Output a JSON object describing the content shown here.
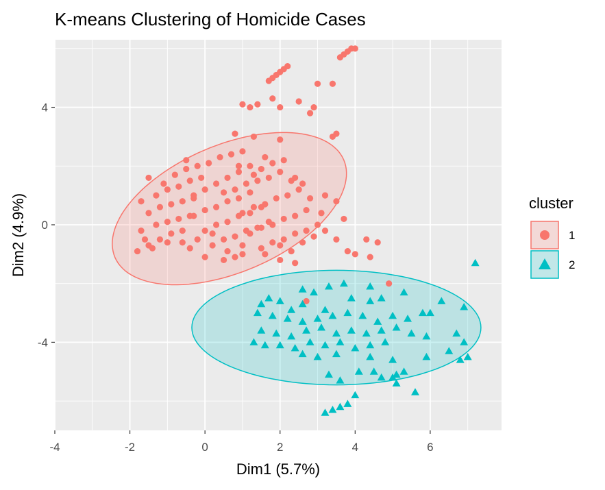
{
  "chart_data": {
    "type": "scatter",
    "title": "K-means Clustering of Homicide Cases",
    "xlabel": "Dim1 (5.7%)",
    "ylabel": "Dim2 (4.9%)",
    "xlim": [
      -4,
      7.9
    ],
    "ylim": [
      -7,
      6.3
    ],
    "x_ticks": [
      -4,
      -2,
      0,
      2,
      4,
      6
    ],
    "y_ticks": [
      -4,
      0,
      4
    ],
    "grid": true,
    "legend": {
      "title": "cluster",
      "position": "right",
      "entries": [
        {
          "label": "1",
          "shape": "circle",
          "color": "#F8766D"
        },
        {
          "label": "2",
          "shape": "triangle",
          "color": "#00BFC4"
        }
      ]
    },
    "colors": {
      "cluster_1": "#F8766D",
      "cluster_2": "#00BFC4",
      "panel": "#EBEBEB",
      "grid": "#FFFFFF"
    },
    "ellipses": [
      {
        "cluster": "1",
        "center": [
          0.65,
          0.55
        ],
        "half_axis_major": 3.5,
        "half_axis_minor": 2.05,
        "angle_deg": 34
      },
      {
        "cluster": "2",
        "center": [
          3.5,
          -3.5
        ],
        "half_axis_major": 3.85,
        "half_axis_minor": 1.95,
        "angle_deg": 0
      }
    ],
    "series": [
      {
        "name": "1",
        "shape": "circle",
        "points": [
          [
            1.7,
            4.9
          ],
          [
            1.8,
            5.0
          ],
          [
            1.9,
            5.1
          ],
          [
            2.0,
            5.2
          ],
          [
            2.1,
            5.3
          ],
          [
            2.2,
            5.4
          ],
          [
            3.6,
            5.7
          ],
          [
            3.7,
            5.8
          ],
          [
            3.8,
            5.9
          ],
          [
            3.9,
            6.0
          ],
          [
            4.0,
            6.0
          ],
          [
            3.0,
            4.8
          ],
          [
            3.4,
            4.8
          ],
          [
            2.0,
            4.0
          ],
          [
            2.5,
            4.2
          ],
          [
            2.8,
            3.8
          ],
          [
            2.9,
            4.0
          ],
          [
            1.2,
            4.0
          ],
          [
            1.4,
            4.1
          ],
          [
            1.8,
            4.3
          ],
          [
            1.0,
            4.1
          ],
          [
            3.4,
            3.0
          ],
          [
            3.5,
            3.1
          ],
          [
            0.8,
            3.1
          ],
          [
            1.3,
            3.0
          ],
          [
            2.0,
            2.9
          ],
          [
            0.9,
            2.0
          ],
          [
            1.6,
            2.3
          ],
          [
            2.4,
            1.6
          ],
          [
            3.2,
            1.0
          ],
          [
            3.5,
            0.8
          ],
          [
            3.7,
            0.2
          ],
          [
            3.2,
            -0.2
          ],
          [
            3.5,
            -0.5
          ],
          [
            4.3,
            -0.5
          ],
          [
            4.6,
            -0.6
          ],
          [
            3.8,
            -0.9
          ],
          [
            4.0,
            -1.0
          ],
          [
            4.4,
            -1.1
          ],
          [
            0.8,
            -1.1
          ],
          [
            2.0,
            -1.2
          ],
          [
            2.4,
            -1.3
          ],
          [
            1.6,
            -1.0
          ],
          [
            4.9,
            -2.0
          ],
          [
            2.7,
            -2.6
          ],
          [
            -1.8,
            -0.9
          ],
          [
            -1.5,
            -0.7
          ],
          [
            -1.2,
            -0.5
          ],
          [
            -0.9,
            -0.3
          ],
          [
            -0.6,
            -0.2
          ],
          [
            -1.6,
            -0.5
          ],
          [
            -1.4,
            -0.8
          ],
          [
            -0.4,
            -0.8
          ],
          [
            0.0,
            -1.1
          ],
          [
            0.5,
            -1.2
          ],
          [
            1.0,
            -1.0
          ],
          [
            -1.7,
            -0.2
          ],
          [
            -1.3,
            0.0
          ],
          [
            -1.0,
            0.1
          ],
          [
            -0.7,
            0.2
          ],
          [
            -0.4,
            0.3
          ],
          [
            -1.5,
            0.4
          ],
          [
            -1.2,
            0.6
          ],
          [
            -0.9,
            0.7
          ],
          [
            -0.6,
            0.8
          ],
          [
            -0.3,
            0.9
          ],
          [
            -1.3,
            1.0
          ],
          [
            -1.0,
            1.2
          ],
          [
            -0.7,
            1.3
          ],
          [
            -0.4,
            1.5
          ],
          [
            -0.1,
            1.6
          ],
          [
            -1.1,
            1.4
          ],
          [
            -0.8,
            1.7
          ],
          [
            -0.5,
            1.9
          ],
          [
            -0.2,
            2.0
          ],
          [
            0.1,
            2.1
          ],
          [
            -0.3,
            1.0
          ],
          [
            0.0,
            1.2
          ],
          [
            0.3,
            1.4
          ],
          [
            0.6,
            1.6
          ],
          [
            0.9,
            1.8
          ],
          [
            1.2,
            2.0
          ],
          [
            -0.3,
            0.3
          ],
          [
            0.0,
            0.5
          ],
          [
            0.3,
            0.6
          ],
          [
            0.6,
            0.8
          ],
          [
            0.9,
            0.9
          ],
          [
            1.2,
            1.1
          ],
          [
            0.0,
            -0.2
          ],
          [
            0.3,
            0.0
          ],
          [
            0.6,
            0.1
          ],
          [
            0.9,
            0.3
          ],
          [
            1.2,
            0.4
          ],
          [
            1.5,
            0.6
          ],
          [
            0.2,
            -0.7
          ],
          [
            0.5,
            -0.5
          ],
          [
            0.8,
            -0.4
          ],
          [
            1.1,
            -0.2
          ],
          [
            1.4,
            -0.1
          ],
          [
            1.7,
            0.1
          ],
          [
            0.5,
            1.1
          ],
          [
            0.8,
            1.2
          ],
          [
            1.1,
            1.4
          ],
          [
            1.4,
            1.5
          ],
          [
            1.7,
            1.6
          ],
          [
            2.0,
            1.8
          ],
          [
            1.0,
            0.4
          ],
          [
            1.3,
            0.6
          ],
          [
            1.6,
            0.7
          ],
          [
            1.9,
            0.9
          ],
          [
            2.2,
            1.0
          ],
          [
            2.5,
            1.2
          ],
          [
            1.2,
            -0.3
          ],
          [
            1.5,
            -0.1
          ],
          [
            1.8,
            0.0
          ],
          [
            2.1,
            0.2
          ],
          [
            2.4,
            0.3
          ],
          [
            2.7,
            0.5
          ],
          [
            1.5,
            -0.8
          ],
          [
            1.8,
            -0.6
          ],
          [
            2.1,
            -0.5
          ],
          [
            2.4,
            -0.3
          ],
          [
            2.7,
            -0.2
          ],
          [
            3.0,
            0.0
          ],
          [
            1.5,
            1.9
          ],
          [
            1.8,
            2.1
          ],
          [
            2.1,
            2.2
          ],
          [
            1.3,
            1.7
          ],
          [
            2.3,
            1.5
          ],
          [
            2.6,
            1.4
          ],
          [
            2.0,
            -0.7
          ],
          [
            2.3,
            -0.9
          ],
          [
            2.6,
            -0.6
          ],
          [
            2.9,
            -0.4
          ],
          [
            3.1,
            0.4
          ],
          [
            2.8,
            0.9
          ],
          [
            0.4,
            2.3
          ],
          [
            0.7,
            2.4
          ],
          [
            1.0,
            2.5
          ],
          [
            -0.5,
            2.2
          ],
          [
            -1.5,
            1.6
          ],
          [
            -1.7,
            0.8
          ],
          [
            -1.0,
            -0.6
          ],
          [
            -0.6,
            -0.6
          ],
          [
            -0.2,
            -0.5
          ],
          [
            0.2,
            -0.3
          ],
          [
            1.0,
            -0.7
          ],
          [
            0.6,
            -0.9
          ]
        ]
      },
      {
        "name": "2",
        "shape": "triangle",
        "points": [
          [
            7.2,
            -1.3
          ],
          [
            6.9,
            -2.8
          ],
          [
            5.3,
            -2.3
          ],
          [
            6.3,
            -2.6
          ],
          [
            6.0,
            -3.0
          ],
          [
            2.6,
            -2.2
          ],
          [
            2.9,
            -2.3
          ],
          [
            3.3,
            -2.1
          ],
          [
            3.7,
            -2.0
          ],
          [
            4.4,
            -2.1
          ],
          [
            4.7,
            -2.5
          ],
          [
            1.5,
            -2.7
          ],
          [
            1.7,
            -2.5
          ],
          [
            2.0,
            -2.6
          ],
          [
            2.3,
            -2.9
          ],
          [
            2.6,
            -2.7
          ],
          [
            1.4,
            -3.0
          ],
          [
            1.8,
            -3.1
          ],
          [
            2.2,
            -3.2
          ],
          [
            2.6,
            -3.3
          ],
          [
            3.0,
            -3.2
          ],
          [
            3.4,
            -3.1
          ],
          [
            3.8,
            -3.0
          ],
          [
            4.2,
            -3.1
          ],
          [
            4.6,
            -3.3
          ],
          [
            5.0,
            -3.1
          ],
          [
            5.4,
            -3.2
          ],
          [
            5.8,
            -3.0
          ],
          [
            1.5,
            -3.6
          ],
          [
            1.9,
            -3.7
          ],
          [
            2.3,
            -3.8
          ],
          [
            2.7,
            -3.6
          ],
          [
            3.1,
            -3.5
          ],
          [
            3.5,
            -3.7
          ],
          [
            3.9,
            -3.6
          ],
          [
            4.3,
            -3.7
          ],
          [
            4.7,
            -3.6
          ],
          [
            5.1,
            -3.5
          ],
          [
            5.5,
            -3.7
          ],
          [
            5.9,
            -3.8
          ],
          [
            1.3,
            -4.0
          ],
          [
            1.6,
            -4.1
          ],
          [
            2.0,
            -4.1
          ],
          [
            2.4,
            -4.2
          ],
          [
            2.8,
            -4.0
          ],
          [
            3.2,
            -4.1
          ],
          [
            3.6,
            -4.0
          ],
          [
            4.0,
            -4.2
          ],
          [
            4.4,
            -4.1
          ],
          [
            4.8,
            -4.0
          ],
          [
            6.7,
            -3.7
          ],
          [
            6.9,
            -4.0
          ],
          [
            2.6,
            -4.4
          ],
          [
            3.0,
            -4.5
          ],
          [
            3.5,
            -4.4
          ],
          [
            4.4,
            -4.5
          ],
          [
            5.0,
            -4.6
          ],
          [
            5.9,
            -4.5
          ],
          [
            6.5,
            -4.3
          ],
          [
            6.8,
            -4.6
          ],
          [
            7.0,
            -4.5
          ],
          [
            3.3,
            -5.1
          ],
          [
            4.1,
            -5.0
          ],
          [
            4.5,
            -5.0
          ],
          [
            4.7,
            -5.2
          ],
          [
            5.1,
            -5.1
          ],
          [
            5.3,
            -5.0
          ],
          [
            3.6,
            -5.3
          ],
          [
            5.0,
            -5.2
          ],
          [
            5.1,
            -5.4
          ],
          [
            5.6,
            -5.7
          ],
          [
            4.0,
            -5.8
          ],
          [
            3.8,
            -6.1
          ],
          [
            3.6,
            -6.2
          ],
          [
            3.4,
            -6.3
          ],
          [
            3.2,
            -6.4
          ],
          [
            4.4,
            -2.6
          ],
          [
            3.9,
            -2.5
          ],
          [
            3.2,
            -2.9
          ]
        ]
      }
    ]
  }
}
